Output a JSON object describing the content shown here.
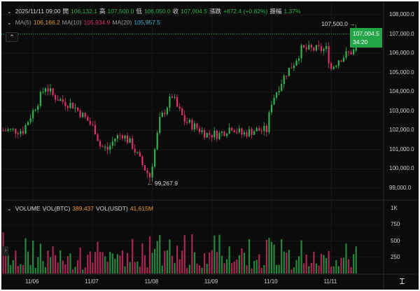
{
  "header": {
    "datetime": "2025/11/11 09:00",
    "open_label": "開",
    "open": "106,132.1",
    "high_label": "高",
    "high": "107,500.0",
    "low_label": "低",
    "low": "106,050.0",
    "close_label": "收",
    "close": "107,004.5",
    "change_label": "漲跌",
    "change": "+872.4 (+0.82%)",
    "amplitude_label": "振幅",
    "amplitude": "1.37%"
  },
  "ma": {
    "ma5_label": "MA(5)",
    "ma5": "106,166.2",
    "ma10_label": "MA(10)",
    "ma10": "105,934.9",
    "ma20_label": "MA(20)",
    "ma20": "105,957.5"
  },
  "volume": {
    "label": "VOLUME",
    "btc_label": "VOL(BTC)",
    "btc": "389.437",
    "usdt_label": "VOL(USDT)",
    "usdt": "41.615M"
  },
  "colors": {
    "up": "#2fb24f",
    "down": "#e0306e",
    "ma5": "#e8973a",
    "ma10": "#e0306e",
    "ma20": "#3ab2d6",
    "price_tag": "#23a548"
  },
  "price_axis": [
    "108,000.0",
    "107,000.0",
    "106,000.0",
    "105,000.0",
    "104,000.0",
    "103,000.0",
    "102,000.0",
    "101,000.0",
    "100,000.0",
    "99,000.0"
  ],
  "current_price": {
    "price": "107,004.5",
    "countdown": "34:20"
  },
  "high_marker": "107,500.0 →",
  "low_marker": "← 99,267.9",
  "volume_axis": [
    "1K",
    "750",
    "500",
    "250"
  ],
  "date_axis": [
    "11/06",
    "11/07",
    "11/08",
    "11/09",
    "11/10",
    "11/11"
  ],
  "chart_data": {
    "type": "candlestick",
    "interval": "1h",
    "ylim": [
      98600,
      108300
    ],
    "volume_ylim": [
      0,
      1000
    ],
    "approx_close_path": [
      [
        "2025-11-05T11:00",
        102000
      ],
      [
        "2025-11-05T19:00",
        102000
      ],
      [
        "2025-11-06T01:00",
        103500
      ],
      [
        "2025-11-06T04:00",
        104300
      ],
      [
        "2025-11-06T07:00",
        103800
      ],
      [
        "2025-11-06T11:00",
        103500
      ],
      [
        "2025-11-06T15:00",
        103300
      ],
      [
        "2025-11-06T21:00",
        102500
      ],
      [
        "2025-11-07T00:00",
        102000
      ],
      [
        "2025-11-07T02:00",
        101200
      ],
      [
        "2025-11-07T05:00",
        101000
      ],
      [
        "2025-11-07T08:00",
        101600
      ],
      [
        "2025-11-07T11:00",
        101800
      ],
      [
        "2025-11-07T15:00",
        101200
      ],
      [
        "2025-11-07T19:00",
        100200
      ],
      [
        "2025-11-07T22:00",
        99600
      ],
      [
        "2025-11-08T00:00",
        101000
      ],
      [
        "2025-11-08T02:00",
        102500
      ],
      [
        "2025-11-08T07:00",
        103800
      ],
      [
        "2025-11-08T09:00",
        103200
      ],
      [
        "2025-11-08T12:00",
        102500
      ],
      [
        "2025-11-08T16:00",
        102200
      ],
      [
        "2025-11-08T21:00",
        101800
      ],
      [
        "2025-11-09T02:00",
        101800
      ],
      [
        "2025-11-09T07:00",
        102200
      ],
      [
        "2025-11-09T11:00",
        101800
      ],
      [
        "2025-11-09T16:00",
        102000
      ],
      [
        "2025-11-09T21:00",
        102000
      ],
      [
        "2025-11-09T23:00",
        103500
      ],
      [
        "2025-11-10T02:00",
        104300
      ],
      [
        "2025-11-10T05:00",
        105000
      ],
      [
        "2025-11-10T08:00",
        105500
      ],
      [
        "2025-11-10T11:00",
        106200
      ],
      [
        "2025-11-10T15:00",
        106200
      ],
      [
        "2025-11-10T21:00",
        106200
      ],
      [
        "2025-11-10T23:00",
        105200
      ],
      [
        "2025-11-11T02:00",
        105700
      ],
      [
        "2025-11-11T06:00",
        106000
      ],
      [
        "2025-11-11T08:00",
        106132.1
      ],
      [
        "2025-11-11T09:00",
        107004.5
      ]
    ]
  }
}
